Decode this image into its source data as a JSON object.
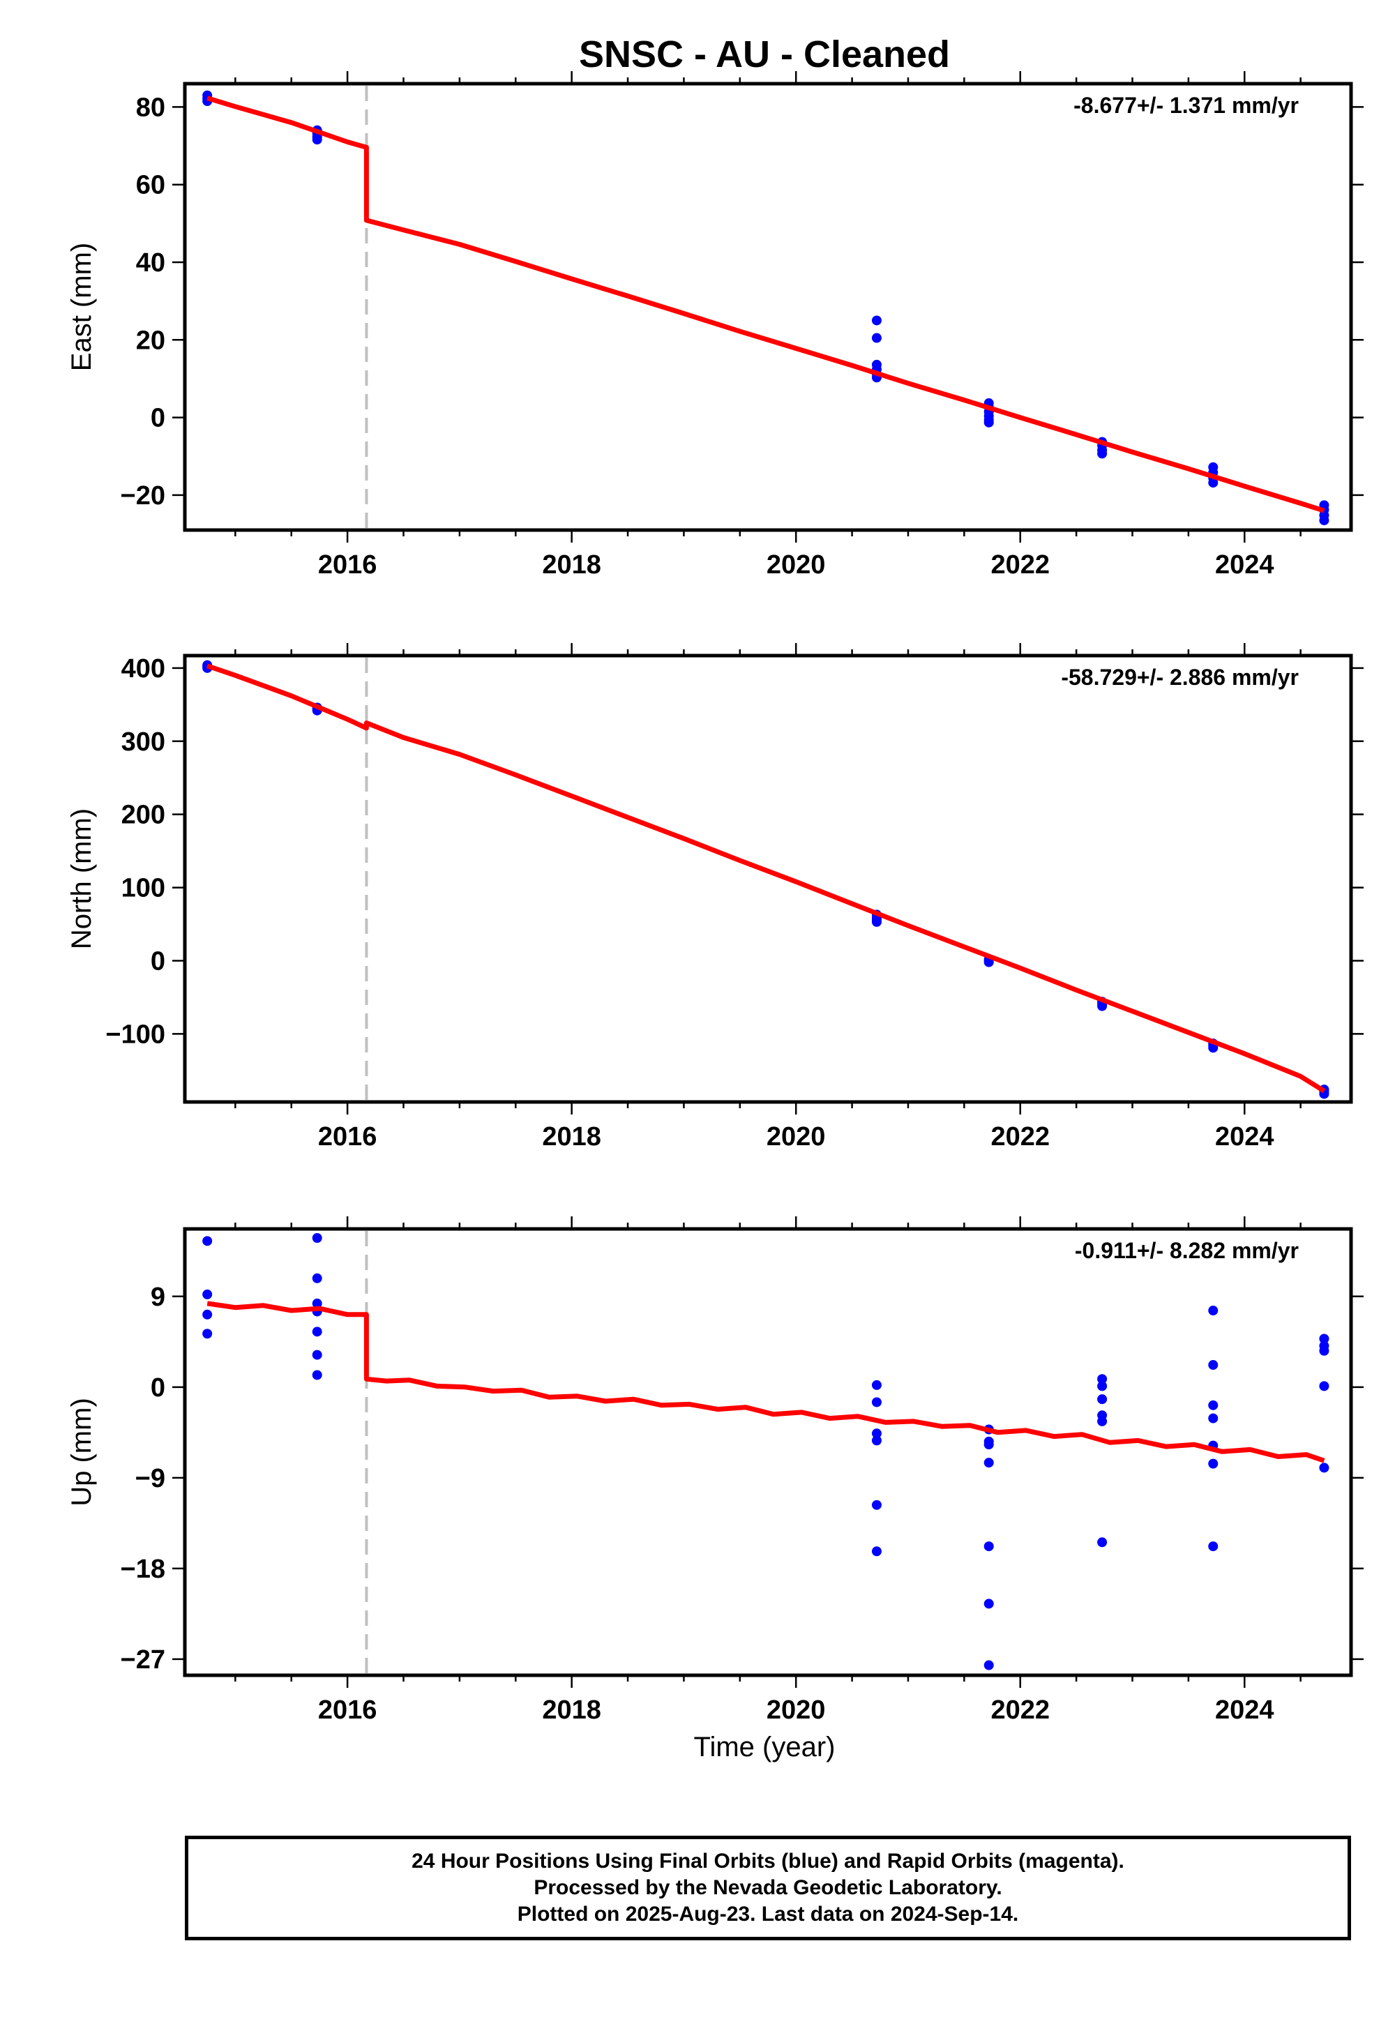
{
  "title": "SNSC  - AU - Cleaned",
  "xlabel": "Time (year)",
  "footer": {
    "line1": "24 Hour Positions Using Final Orbits (blue) and Rapid Orbits (magenta).",
    "line2": "Processed by the Nevada Geodetic Laboratory.",
    "line3": "Plotted on 2025-Aug-23. Last data on 2024-Sep-14."
  },
  "colors": {
    "observations": "#0000ff",
    "model": "#ff0000",
    "break_line": "#c0c0c0"
  },
  "chart_data": [
    {
      "type": "scatter",
      "ylabel": "East (mm)",
      "rate_label": "-8.677+/- 1.371 mm/yr",
      "xlim": [
        2014.55,
        2024.95
      ],
      "ylim": [
        -29,
        86
      ],
      "xticks": [
        2016,
        2018,
        2020,
        2022,
        2024
      ],
      "yticks": [
        80,
        60,
        40,
        20,
        0,
        -20
      ],
      "ytick_labels": [
        "80",
        "60",
        "40",
        "20",
        "0",
        "−20"
      ],
      "break_year": 2016.17,
      "points": [
        [
          2014.75,
          83
        ],
        [
          2014.75,
          82.2
        ],
        [
          2014.75,
          81.5
        ],
        [
          2015.73,
          74
        ],
        [
          2015.73,
          73.2
        ],
        [
          2015.73,
          72.3
        ],
        [
          2015.73,
          71.6
        ],
        [
          2020.72,
          25
        ],
        [
          2020.72,
          20.5
        ],
        [
          2020.72,
          13.6
        ],
        [
          2020.72,
          12.4
        ],
        [
          2020.72,
          11.2
        ],
        [
          2020.72,
          10.3
        ],
        [
          2021.72,
          3.7
        ],
        [
          2021.72,
          2.7
        ],
        [
          2021.72,
          1.5
        ],
        [
          2021.72,
          0.4
        ],
        [
          2021.72,
          -0.6
        ],
        [
          2021.72,
          -1.3
        ],
        [
          2022.73,
          -6.3
        ],
        [
          2022.73,
          -7.2
        ],
        [
          2022.73,
          -8.4
        ],
        [
          2022.73,
          -9.3
        ],
        [
          2023.72,
          -12.8
        ],
        [
          2023.72,
          -14.2
        ],
        [
          2023.72,
          -15.6
        ],
        [
          2023.72,
          -16.8
        ],
        [
          2024.71,
          -22.6
        ],
        [
          2024.71,
          -23.8
        ],
        [
          2024.71,
          -25.2
        ],
        [
          2024.71,
          -26.5
        ]
      ],
      "model": [
        [
          2014.75,
          82.3
        ],
        [
          2015.0,
          80.1
        ],
        [
          2015.5,
          76.0
        ],
        [
          2016.0,
          71.0
        ],
        [
          2016.17,
          69.6
        ],
        [
          2016.17,
          50.8
        ],
        [
          2016.5,
          48.3
        ],
        [
          2017.0,
          44.6
        ],
        [
          2017.5,
          40.2
        ],
        [
          2018.0,
          35.7
        ],
        [
          2018.5,
          31.3
        ],
        [
          2019.0,
          26.8
        ],
        [
          2019.5,
          22.2
        ],
        [
          2020.0,
          17.8
        ],
        [
          2020.5,
          13.4
        ],
        [
          2021.0,
          8.8
        ],
        [
          2021.5,
          4.5
        ],
        [
          2022.0,
          0.0
        ],
        [
          2022.5,
          -4.4
        ],
        [
          2023.0,
          -8.9
        ],
        [
          2023.5,
          -13.2
        ],
        [
          2024.0,
          -17.7
        ],
        [
          2024.5,
          -22.1
        ],
        [
          2024.71,
          -24.0
        ]
      ]
    },
    {
      "type": "scatter",
      "ylabel": "North (mm)",
      "rate_label": "-58.729+/- 2.886 mm/yr",
      "xlim": [
        2014.55,
        2024.95
      ],
      "ylim": [
        -193,
        417
      ],
      "xticks": [
        2016,
        2018,
        2020,
        2022,
        2024
      ],
      "yticks": [
        400,
        300,
        200,
        100,
        0,
        -100
      ],
      "ytick_labels": [
        "400",
        "300",
        "200",
        "100",
        "0",
        "−100"
      ],
      "break_year": 2016.17,
      "points": [
        [
          2014.75,
          404
        ],
        [
          2014.75,
          402
        ],
        [
          2014.75,
          400
        ],
        [
          2015.73,
          346
        ],
        [
          2015.73,
          344
        ],
        [
          2015.73,
          342
        ],
        [
          2020.72,
          63
        ],
        [
          2020.72,
          59
        ],
        [
          2020.72,
          56
        ],
        [
          2020.72,
          53
        ],
        [
          2021.72,
          2
        ],
        [
          2021.72,
          0
        ],
        [
          2021.72,
          -2
        ],
        [
          2022.73,
          -56
        ],
        [
          2022.73,
          -59
        ],
        [
          2022.73,
          -62
        ],
        [
          2023.72,
          -113
        ],
        [
          2023.72,
          -116
        ],
        [
          2023.72,
          -119
        ],
        [
          2024.71,
          -176
        ],
        [
          2024.71,
          -179
        ],
        [
          2024.71,
          -182
        ]
      ],
      "model": [
        [
          2014.75,
          403
        ],
        [
          2015.0,
          390
        ],
        [
          2015.5,
          362
        ],
        [
          2016.0,
          330
        ],
        [
          2016.17,
          318
        ],
        [
          2016.17,
          325
        ],
        [
          2016.5,
          305
        ],
        [
          2017.0,
          282
        ],
        [
          2017.5,
          254
        ],
        [
          2018.0,
          225
        ],
        [
          2018.5,
          196
        ],
        [
          2019.0,
          167
        ],
        [
          2019.5,
          137
        ],
        [
          2020.0,
          108
        ],
        [
          2020.5,
          78
        ],
        [
          2021.0,
          48
        ],
        [
          2021.5,
          19
        ],
        [
          2022.0,
          -10
        ],
        [
          2022.5,
          -40
        ],
        [
          2023.0,
          -69
        ],
        [
          2023.5,
          -98
        ],
        [
          2024.0,
          -127
        ],
        [
          2024.5,
          -158
        ],
        [
          2024.71,
          -178
        ]
      ]
    },
    {
      "type": "scatter",
      "ylabel": "Up (mm)",
      "rate_label": "-0.911+/- 8.282 mm/yr",
      "xlim": [
        2014.55,
        2024.95
      ],
      "ylim": [
        -28.6,
        15.7
      ],
      "xticks": [
        2016,
        2018,
        2020,
        2022,
        2024
      ],
      "yticks": [
        9,
        0,
        -9,
        -18,
        -27
      ],
      "ytick_labels": [
        "9",
        "0",
        "−9",
        "−18",
        "−27"
      ],
      "break_year": 2016.17,
      "points": [
        [
          2014.75,
          14.5
        ],
        [
          2014.75,
          9.2
        ],
        [
          2014.75,
          7.2
        ],
        [
          2014.75,
          5.3
        ],
        [
          2015.73,
          14.8
        ],
        [
          2015.73,
          10.8
        ],
        [
          2015.73,
          8.3
        ],
        [
          2015.73,
          7.5
        ],
        [
          2015.73,
          5.5
        ],
        [
          2015.73,
          3.2
        ],
        [
          2015.73,
          1.2
        ],
        [
          2020.72,
          0.2
        ],
        [
          2020.72,
          -1.5
        ],
        [
          2020.72,
          -4.6
        ],
        [
          2020.72,
          -5.3
        ],
        [
          2020.72,
          -11.7
        ],
        [
          2020.72,
          -16.3
        ],
        [
          2021.72,
          -4.2
        ],
        [
          2021.72,
          -5.4
        ],
        [
          2021.72,
          -5.7
        ],
        [
          2021.72,
          -7.5
        ],
        [
          2021.72,
          -15.8
        ],
        [
          2021.72,
          -21.5
        ],
        [
          2021.72,
          -27.6
        ],
        [
          2022.73,
          0.8
        ],
        [
          2022.73,
          0.1
        ],
        [
          2022.73,
          -1.2
        ],
        [
          2022.73,
          -2.8
        ],
        [
          2022.73,
          -3.4
        ],
        [
          2022.73,
          -15.4
        ],
        [
          2023.72,
          7.6
        ],
        [
          2023.72,
          2.2
        ],
        [
          2023.72,
          -1.8
        ],
        [
          2023.72,
          -3.1
        ],
        [
          2023.72,
          -5.8
        ],
        [
          2023.72,
          -7.6
        ],
        [
          2023.72,
          -15.8
        ],
        [
          2024.71,
          4.8
        ],
        [
          2024.71,
          4.1
        ],
        [
          2024.71,
          3.6
        ],
        [
          2024.71,
          0.1
        ],
        [
          2024.71,
          -8.0
        ]
      ],
      "model": [
        [
          2014.75,
          8.3
        ],
        [
          2015.0,
          7.9
        ],
        [
          2015.25,
          8.1
        ],
        [
          2015.5,
          7.6
        ],
        [
          2015.75,
          7.8
        ],
        [
          2016.0,
          7.2
        ],
        [
          2016.17,
          7.2
        ],
        [
          2016.17,
          0.8
        ],
        [
          2016.35,
          0.6
        ],
        [
          2016.55,
          0.7
        ],
        [
          2016.8,
          0.1
        ],
        [
          2017.05,
          0.0
        ],
        [
          2017.3,
          -0.4
        ],
        [
          2017.55,
          -0.3
        ],
        [
          2017.8,
          -1.0
        ],
        [
          2018.05,
          -0.9
        ],
        [
          2018.3,
          -1.4
        ],
        [
          2018.55,
          -1.2
        ],
        [
          2018.8,
          -1.8
        ],
        [
          2019.05,
          -1.7
        ],
        [
          2019.3,
          -2.2
        ],
        [
          2019.55,
          -2.0
        ],
        [
          2019.8,
          -2.7
        ],
        [
          2020.05,
          -2.5
        ],
        [
          2020.3,
          -3.1
        ],
        [
          2020.55,
          -2.9
        ],
        [
          2020.8,
          -3.5
        ],
        [
          2021.05,
          -3.4
        ],
        [
          2021.3,
          -3.9
        ],
        [
          2021.55,
          -3.8
        ],
        [
          2021.8,
          -4.5
        ],
        [
          2022.05,
          -4.3
        ],
        [
          2022.3,
          -4.9
        ],
        [
          2022.55,
          -4.7
        ],
        [
          2022.8,
          -5.5
        ],
        [
          2023.05,
          -5.3
        ],
        [
          2023.3,
          -5.9
        ],
        [
          2023.55,
          -5.7
        ],
        [
          2023.8,
          -6.4
        ],
        [
          2024.05,
          -6.2
        ],
        [
          2024.3,
          -6.9
        ],
        [
          2024.55,
          -6.7
        ],
        [
          2024.71,
          -7.3
        ]
      ]
    }
  ]
}
